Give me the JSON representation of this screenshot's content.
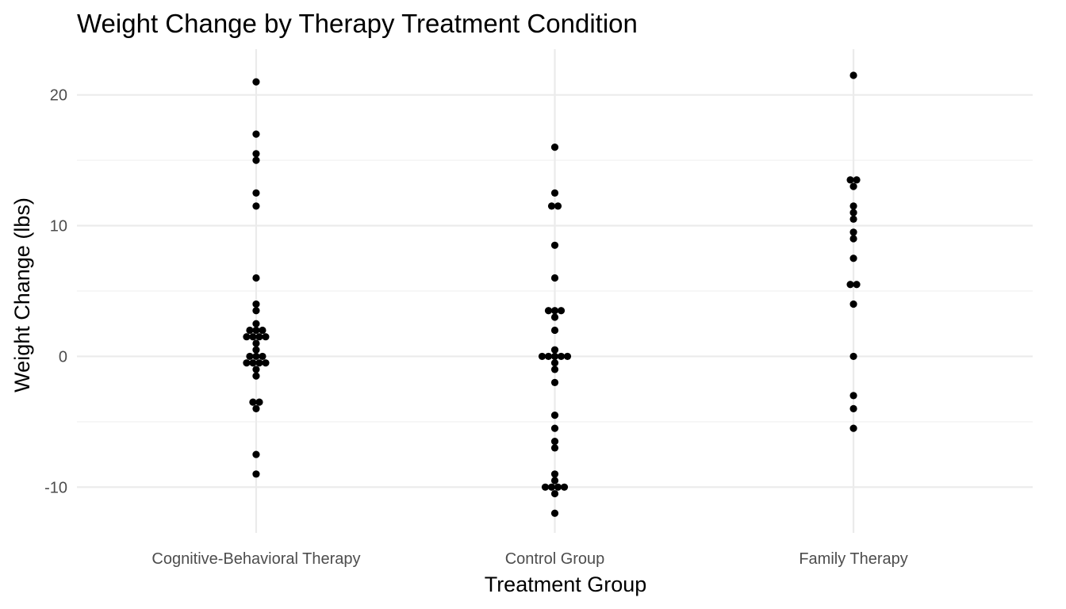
{
  "chart_data": {
    "type": "scatter",
    "title": "Weight Change by Therapy Treatment Condition",
    "xlabel": "Treatment Group",
    "ylabel": "Weight Change (lbs)",
    "categories": [
      "Cognitive-Behavioral Therapy",
      "Control Group",
      "Family Therapy"
    ],
    "ylim": [
      -13.5,
      23.5
    ],
    "yticks": [
      -10,
      0,
      10,
      20
    ],
    "yticklabels": [
      "-10",
      "0",
      "10",
      "20"
    ],
    "grid": true,
    "legend": "none",
    "point_color": "#000000",
    "series": [
      {
        "category": "Cognitive-Behavioral Therapy",
        "values": [
          21,
          17,
          15.5,
          15,
          12.5,
          11.5,
          6,
          4,
          3.5,
          2.5,
          2,
          2,
          2,
          1.5,
          1.5,
          1.5,
          1.5,
          1,
          0.5,
          0,
          0,
          0,
          -0.5,
          -0.5,
          -0.5,
          -0.5,
          -1,
          -1.5,
          -3.5,
          -3.5,
          -4,
          -7.5,
          -9
        ]
      },
      {
        "category": "Control Group",
        "values": [
          16,
          12.5,
          11.5,
          11.5,
          8.5,
          6,
          3.5,
          3.5,
          3.5,
          3,
          2,
          0.5,
          0,
          0,
          0,
          0,
          0,
          -0.5,
          -1,
          -2,
          -4.5,
          -5.5,
          -6.5,
          -7,
          -9,
          -9.5,
          -10,
          -10,
          -10,
          -10,
          -10.5,
          -12
        ]
      },
      {
        "category": "Family Therapy",
        "values": [
          21.5,
          13.5,
          13.5,
          13,
          11.5,
          11,
          10.5,
          9.5,
          9,
          7.5,
          5.5,
          5.5,
          4,
          0,
          -3,
          -4,
          -5.5
        ]
      }
    ]
  }
}
